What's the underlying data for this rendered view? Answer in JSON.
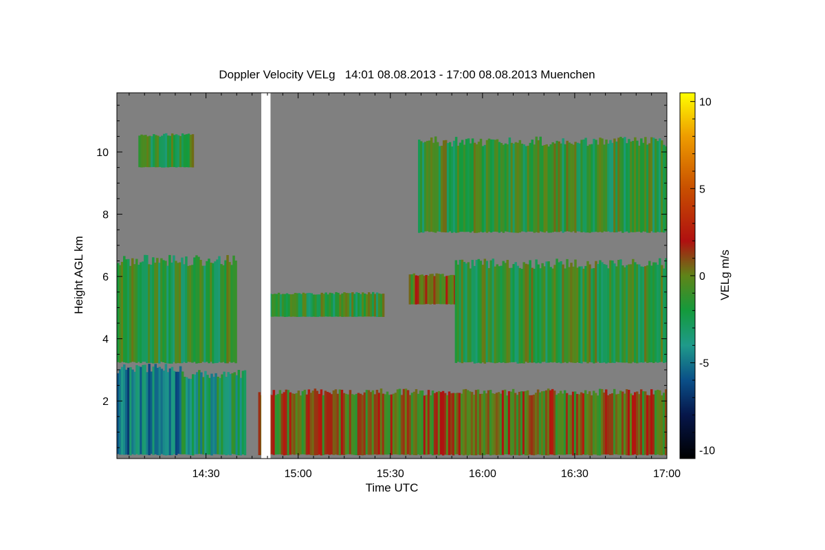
{
  "chart_data": {
    "type": "heatmap",
    "title": "Doppler Velocity VELg   14:01 08.08.2013 - 17:00 08.08.2013 Muenchen",
    "xlabel": "Time UTC",
    "ylabel": "Height AGL km",
    "colorbar_label": "VELg m/s",
    "x_tick_labels": [
      "14:30",
      "15:00",
      "15:30",
      "16:00",
      "16:30",
      "17:00"
    ],
    "x_tick_minutes": [
      30,
      60,
      90,
      120,
      150,
      180
    ],
    "x_range_minutes": [
      1,
      180
    ],
    "y_tick_labels": [
      "2",
      "4",
      "6",
      "8",
      "10"
    ],
    "y_tick_values": [
      2,
      4,
      6,
      8,
      10
    ],
    "y_range_km": [
      0.15,
      11.9
    ],
    "colorbar_tick_labels": [
      "10",
      "5",
      "0",
      "-5",
      "-10"
    ],
    "colorbar_tick_values": [
      10,
      5,
      0,
      -5,
      -10
    ],
    "colorbar_range": [
      -10.5,
      10.5
    ],
    "background_value_color": "#808080",
    "colormap": [
      {
        "v": -10.5,
        "color": "#000000"
      },
      {
        "v": -8,
        "color": "#06164a"
      },
      {
        "v": -6,
        "color": "#0a4f88"
      },
      {
        "v": -4,
        "color": "#1f9a8a"
      },
      {
        "v": -2,
        "color": "#149a3c"
      },
      {
        "v": 0,
        "color": "#5f8418"
      },
      {
        "v": 2,
        "color": "#b01010"
      },
      {
        "v": 5,
        "color": "#c84f00"
      },
      {
        "v": 8,
        "color": "#ee9c00"
      },
      {
        "v": 10.5,
        "color": "#ffff00"
      }
    ],
    "regions": [
      {
        "name": "boundary-layer-updraft",
        "t": [
          1,
          22
        ],
        "h": [
          0.25,
          3.2
        ],
        "v": -5
      },
      {
        "name": "boundary-layer-mixed",
        "t": [
          22,
          43
        ],
        "h": [
          0.25,
          3.0
        ],
        "v": -3
      },
      {
        "name": "low-cloud-rain",
        "t": [
          47,
          180
        ],
        "h": [
          0.25,
          2.4
        ],
        "v": 0.5
      },
      {
        "name": "lower-cloud-layer",
        "t": [
          1,
          40
        ],
        "h": [
          3.2,
          6.7
        ],
        "v": -1.5
      },
      {
        "name": "mid-cloud-band",
        "t": [
          50,
          88
        ],
        "h": [
          4.7,
          5.5
        ],
        "v": -1.5
      },
      {
        "name": "mid-cloud-patch",
        "t": [
          96,
          112
        ],
        "h": [
          5.1,
          6.1
        ],
        "v": 0.5
      },
      {
        "name": "mid-cloud-right",
        "t": [
          111,
          180
        ],
        "h": [
          3.2,
          6.6
        ],
        "v": -1.5
      },
      {
        "name": "upper-cloud-right",
        "t": [
          99,
          180
        ],
        "h": [
          7.4,
          10.5
        ],
        "v": -1.5
      },
      {
        "name": "upper-cloud-left",
        "t": [
          8,
          26
        ],
        "h": [
          9.5,
          10.6
        ],
        "v": -1.5
      }
    ],
    "data_gap_minutes": [
      48,
      51
    ]
  }
}
